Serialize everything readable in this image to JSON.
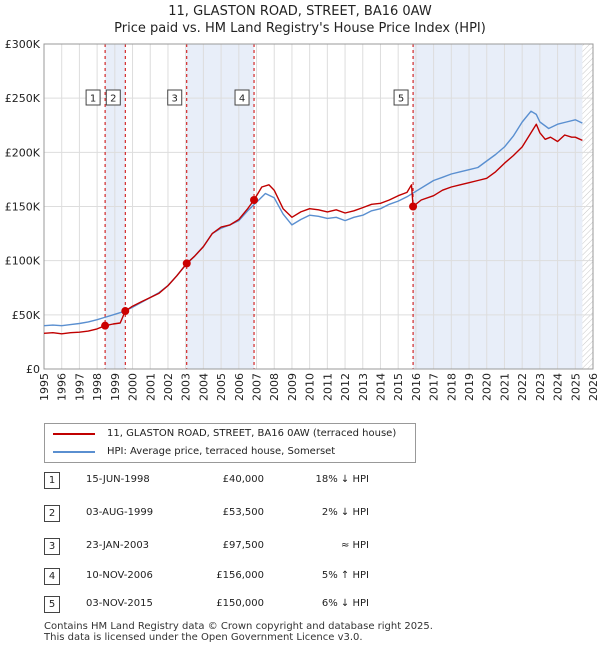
{
  "chart_data": {
    "type": "line",
    "title": "11, GLASTON ROAD, STREET, BA16 0AW",
    "subtitle": "Price paid vs. HM Land Registry's House Price Index (HPI)",
    "xlim": [
      1995,
      2026
    ],
    "ylim": [
      0,
      300000
    ],
    "yticks": [
      0,
      50000,
      100000,
      150000,
      200000,
      250000,
      300000
    ],
    "ytick_labels": [
      "£0",
      "£50K",
      "£100K",
      "£150K",
      "£200K",
      "£250K",
      "£300K"
    ],
    "xticks": [
      1995,
      1996,
      1997,
      1998,
      1999,
      2000,
      2001,
      2002,
      2003,
      2004,
      2005,
      2006,
      2007,
      2008,
      2009,
      2010,
      2011,
      2012,
      2013,
      2014,
      2015,
      2016,
      2017,
      2018,
      2019,
      2020,
      2021,
      2022,
      2023,
      2024,
      2025,
      2026
    ],
    "grid": true,
    "shaded_periods": [
      [
        1998.45,
        1999.59
      ],
      [
        2003.06,
        2006.86
      ],
      [
        2015.84,
        2025.4
      ]
    ],
    "data_end_year": 2025.4,
    "series": [
      {
        "name": "11, GLASTON ROAD, STREET, BA16 0AW (terraced house)",
        "color": "#c00000",
        "x": [
          1995.0,
          1995.5,
          1996.0,
          1996.5,
          1997.0,
          1997.5,
          1998.0,
          1998.45,
          1998.9,
          1999.3,
          1999.59,
          2000.0,
          2000.5,
          2001.0,
          2001.5,
          2002.0,
          2002.5,
          2003.06,
          2003.5,
          2004.0,
          2004.5,
          2005.0,
          2005.5,
          2006.0,
          2006.5,
          2006.86,
          2007.3,
          2007.7,
          2008.0,
          2008.5,
          2009.0,
          2009.5,
          2010.0,
          2010.5,
          2011.0,
          2011.5,
          2012.0,
          2012.5,
          2013.0,
          2013.5,
          2014.0,
          2014.5,
          2015.0,
          2015.5,
          2015.75,
          2015.84,
          2016.3,
          2017.0,
          2017.5,
          2018.0,
          2018.5,
          2019.0,
          2019.5,
          2020.0,
          2020.5,
          2021.0,
          2021.5,
          2022.0,
          2022.5,
          2022.8,
          2023.0,
          2023.3,
          2023.6,
          2024.0,
          2024.4,
          2024.8,
          2025.0,
          2025.4
        ],
        "values": [
          33000,
          33500,
          32500,
          33500,
          34000,
          35000,
          37000,
          40000,
          41500,
          42500,
          53500,
          58000,
          62000,
          66000,
          70000,
          77000,
          86000,
          97500,
          104000,
          113000,
          125000,
          131000,
          133000,
          138000,
          148000,
          156000,
          168000,
          170000,
          165000,
          148000,
          140000,
          145000,
          148000,
          147000,
          145000,
          147000,
          144000,
          146000,
          149000,
          152000,
          153000,
          156000,
          160000,
          163000,
          170000,
          150000,
          156000,
          160000,
          165000,
          168000,
          170000,
          172000,
          174000,
          176000,
          182000,
          190000,
          197000,
          205000,
          218000,
          226000,
          218000,
          212000,
          214000,
          210000,
          216000,
          214000,
          214000,
          211000
        ]
      },
      {
        "name": "HPI: Average price, terraced house, Somerset",
        "color": "#5a8fd0",
        "x": [
          1995.0,
          1995.5,
          1996.0,
          1996.5,
          1997.0,
          1997.5,
          1998.0,
          1998.5,
          1999.0,
          1999.5,
          2000.0,
          2000.5,
          2001.0,
          2001.5,
          2002.0,
          2002.5,
          2003.0,
          2003.5,
          2004.0,
          2004.5,
          2005.0,
          2005.5,
          2006.0,
          2006.5,
          2007.0,
          2007.5,
          2008.0,
          2008.5,
          2009.0,
          2009.5,
          2010.0,
          2010.5,
          2011.0,
          2011.5,
          2012.0,
          2012.5,
          2013.0,
          2013.5,
          2014.0,
          2014.5,
          2015.0,
          2015.5,
          2016.0,
          2016.5,
          2017.0,
          2017.5,
          2018.0,
          2018.5,
          2019.0,
          2019.5,
          2020.0,
          2020.5,
          2021.0,
          2021.5,
          2022.0,
          2022.5,
          2022.8,
          2023.0,
          2023.5,
          2024.0,
          2024.5,
          2025.0,
          2025.4
        ],
        "values": [
          40000,
          40500,
          40000,
          41000,
          42000,
          43500,
          45500,
          48000,
          50500,
          53000,
          57000,
          61500,
          66000,
          70500,
          77000,
          86000,
          96000,
          104000,
          113000,
          125000,
          130000,
          133000,
          137000,
          146000,
          154000,
          162000,
          158000,
          143000,
          133000,
          138000,
          142000,
          141000,
          139000,
          140000,
          137000,
          140000,
          142000,
          146000,
          148000,
          152000,
          155000,
          159000,
          164000,
          169000,
          174000,
          177000,
          180000,
          182000,
          184000,
          186000,
          192000,
          198000,
          205000,
          215000,
          228000,
          238000,
          235000,
          228000,
          222000,
          226000,
          228000,
          230000,
          227000
        ]
      }
    ],
    "sale_markers": [
      {
        "label": "1",
        "x": 1998.45,
        "value": 40000
      },
      {
        "label": "2",
        "x": 1999.59,
        "value": 53500
      },
      {
        "label": "3",
        "x": 2003.06,
        "value": 97500
      },
      {
        "label": "4",
        "x": 2006.86,
        "value": 156000
      },
      {
        "label": "5",
        "x": 2015.84,
        "value": 150000
      }
    ]
  },
  "legend": {
    "property_label": "11, GLASTON ROAD, STREET, BA16 0AW (terraced house)",
    "hpi_label": "HPI: Average price, terraced house, Somerset",
    "property_color": "#c00000",
    "hpi_color": "#5a8fd0"
  },
  "sales": [
    {
      "num": "1",
      "date": "15-JUN-1998",
      "price": "£40,000",
      "hpi": "18% ↓ HPI"
    },
    {
      "num": "2",
      "date": "03-AUG-1999",
      "price": "£53,500",
      "hpi": "2% ↓ HPI"
    },
    {
      "num": "3",
      "date": "23-JAN-2003",
      "price": "£97,500",
      "hpi": "≈ HPI"
    },
    {
      "num": "4",
      "date": "10-NOV-2006",
      "price": "£156,000",
      "hpi": "5% ↑ HPI"
    },
    {
      "num": "5",
      "date": "03-NOV-2015",
      "price": "£150,000",
      "hpi": "6% ↓ HPI"
    }
  ],
  "footer": {
    "line1": "Contains HM Land Registry data © Crown copyright and database right 2025.",
    "line2": "This data is licensed under the Open Government Licence v3.0."
  }
}
